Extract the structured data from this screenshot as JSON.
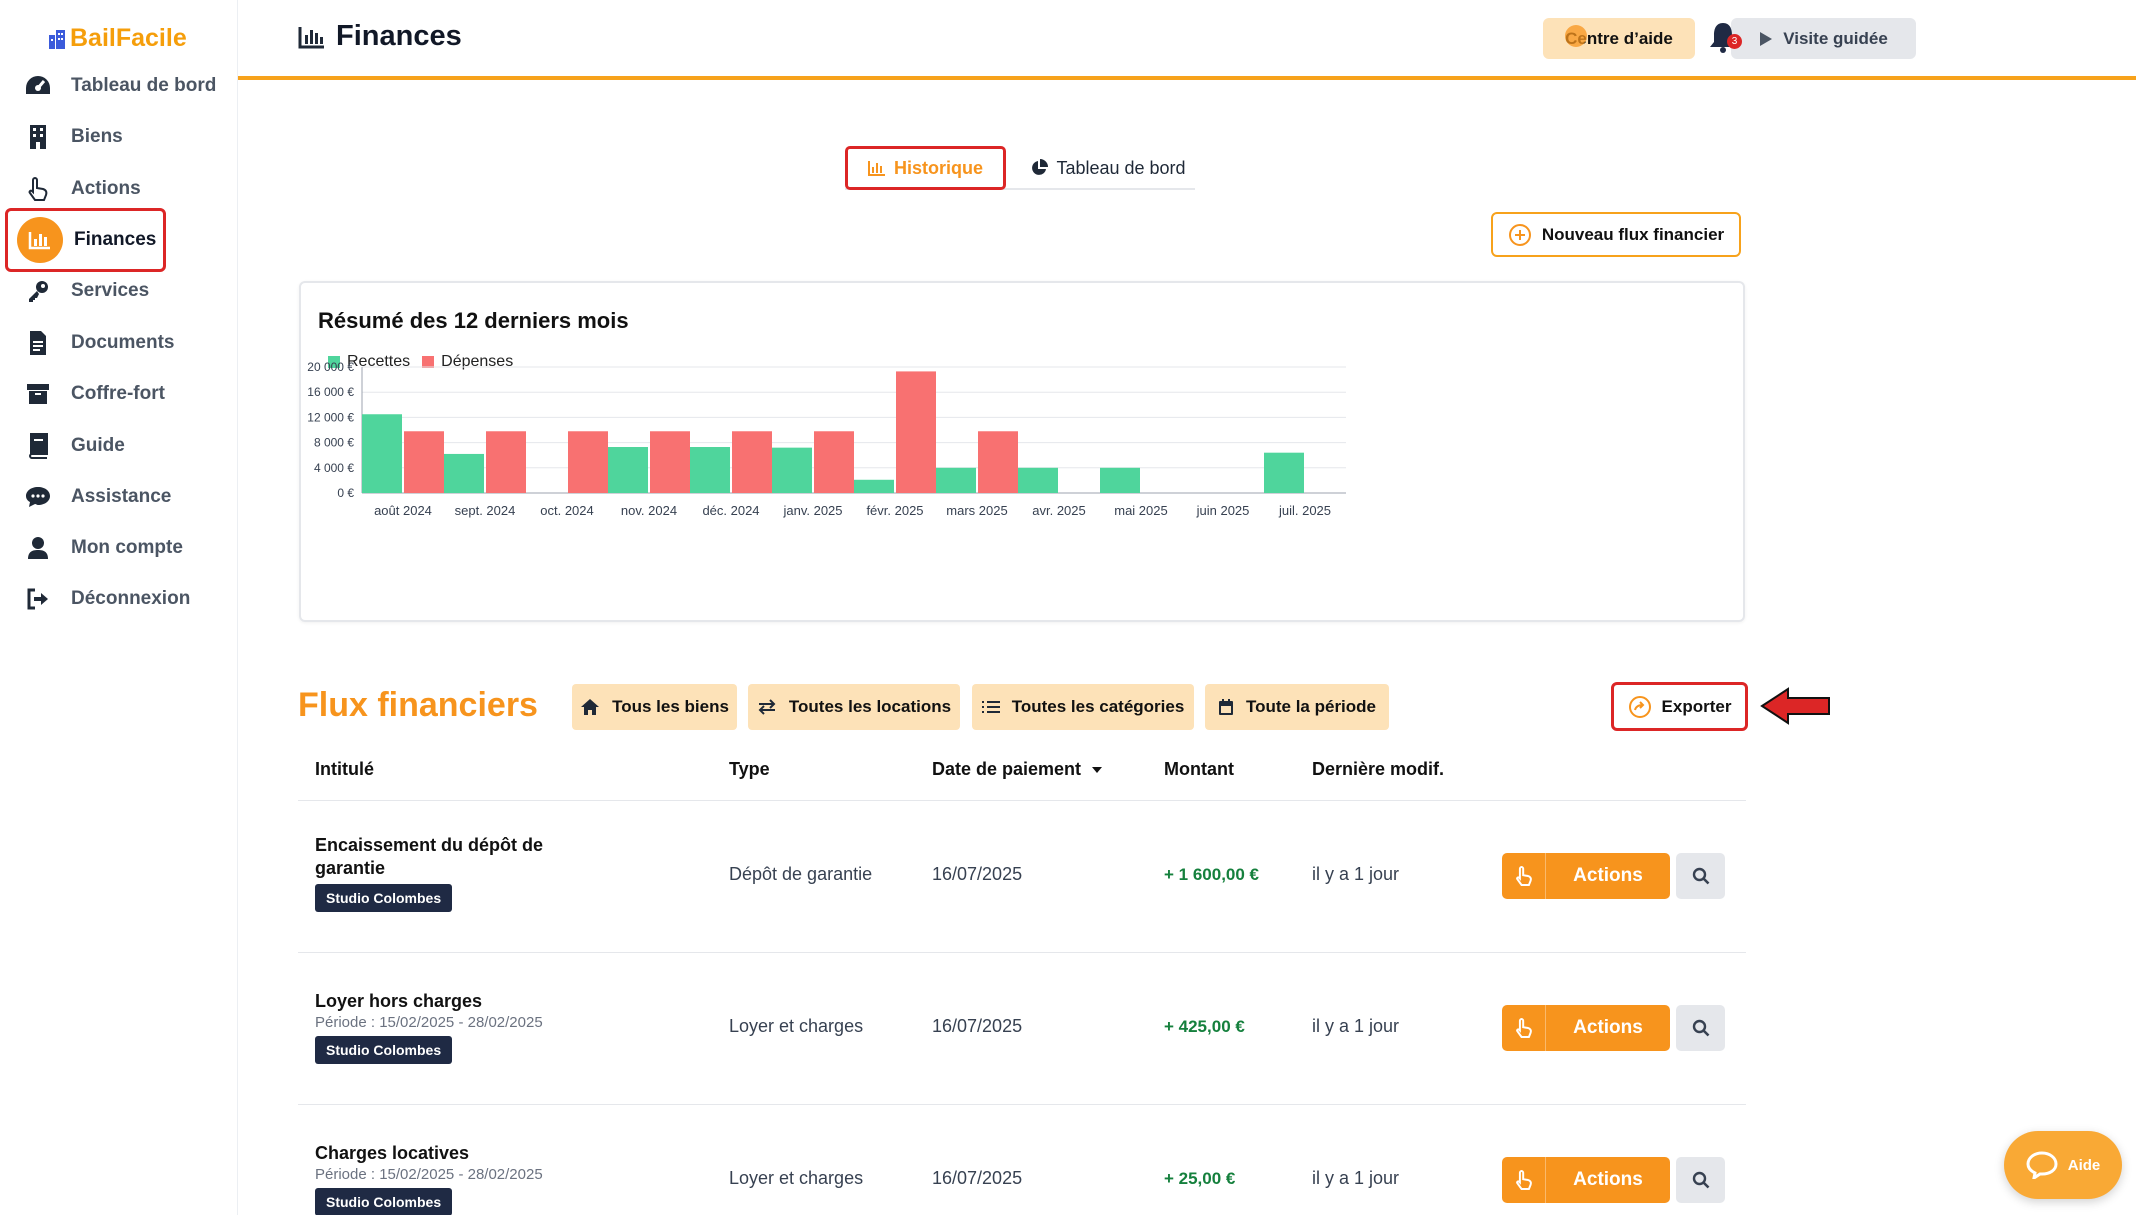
{
  "app": {
    "name": "BailFacile"
  },
  "sidebar": {
    "items": [
      {
        "label": "Tableau de bord",
        "icon": "gauge-icon"
      },
      {
        "label": "Biens",
        "icon": "building-icon"
      },
      {
        "label": "Actions",
        "icon": "pointer-hand-icon"
      },
      {
        "label": "Finances",
        "icon": "bar-chart-icon",
        "active": true
      },
      {
        "label": "Services",
        "icon": "key-icon"
      },
      {
        "label": "Documents",
        "icon": "document-icon"
      },
      {
        "label": "Coffre-fort",
        "icon": "archive-box-icon"
      },
      {
        "label": "Guide",
        "icon": "book-icon"
      },
      {
        "label": "Assistance",
        "icon": "chat-bubble-icon"
      },
      {
        "label": "Mon compte",
        "icon": "user-icon"
      },
      {
        "label": "Déconnexion",
        "icon": "sign-out-icon"
      }
    ]
  },
  "header": {
    "title": "Finances",
    "help_label": "Centre d’aide",
    "tour_label": "Visite guidée",
    "notifications_count": "3"
  },
  "tabs": {
    "history": "Historique",
    "dashboard": "Tableau de bord"
  },
  "new_flow_label": "Nouveau flux financier",
  "summary": {
    "title": "Résumé des 12 derniers mois"
  },
  "chart_data": {
    "type": "bar",
    "title": "Résumé des 12 derniers mois",
    "categories": [
      "août 2024",
      "sept. 2024",
      "oct. 2024",
      "nov. 2024",
      "déc. 2024",
      "janv. 2025",
      "févr. 2025",
      "mars 2025",
      "avr. 2025",
      "mai 2025",
      "juin 2025",
      "juil. 2025"
    ],
    "series": [
      {
        "name": "Recettes",
        "color": "#4fd59c",
        "values": [
          12500,
          6200,
          0,
          7300,
          7300,
          7200,
          2100,
          4000,
          4000,
          4000,
          0,
          6400
        ]
      },
      {
        "name": "Dépenses",
        "color": "#f87171",
        "values": [
          9800,
          9800,
          9800,
          9800,
          9800,
          9800,
          19300,
          9800,
          0,
          0,
          0,
          0
        ]
      }
    ],
    "y_ticks": [
      "0 €",
      "4 000 €",
      "8 000 €",
      "12 000 €",
      "16 000 €",
      "20 000 €"
    ],
    "ylim": [
      0,
      20000
    ],
    "grid": true,
    "legend": "top-left"
  },
  "flux": {
    "title": "Flux financiers",
    "filters": [
      {
        "label": "Tous les biens",
        "icon": "home-icon"
      },
      {
        "label": "Toutes les locations",
        "icon": "swap-arrows-icon"
      },
      {
        "label": "Toutes les catégories",
        "icon": "list-icon"
      },
      {
        "label": "Toute la période",
        "icon": "calendar-icon"
      }
    ],
    "export_label": "Exporter",
    "columns": [
      "Intitulé",
      "Type",
      "Date de paiement",
      "Montant",
      "Dernière modif."
    ],
    "rows": [
      {
        "title": "Encaissement du dépôt de garantie",
        "period": "",
        "tag": "Studio Colombes",
        "type": "Dépôt de garantie",
        "date": "16/07/2025",
        "amount": "+ 1 600,00 €",
        "modified": "il y a 1 jour",
        "action": "Actions"
      },
      {
        "title": "Loyer hors charges",
        "period": "Période : 15/02/2025 - 28/02/2025",
        "tag": "Studio Colombes",
        "type": "Loyer et charges",
        "date": "16/07/2025",
        "amount": "+ 425,00 €",
        "modified": "il y a 1 jour",
        "action": "Actions"
      },
      {
        "title": "Charges locatives",
        "period": "Période : 15/02/2025 - 28/02/2025",
        "tag": "Studio Colombes",
        "type": "Loyer et charges",
        "date": "16/07/2025",
        "amount": "+ 25,00 €",
        "modified": "il y a 1 jour",
        "action": "Actions"
      }
    ]
  },
  "help_fab_label": "Aide"
}
